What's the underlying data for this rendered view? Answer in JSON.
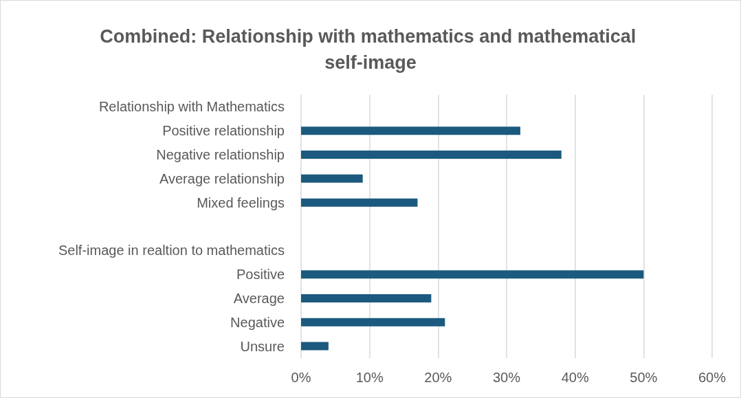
{
  "chart_data": {
    "type": "bar",
    "orientation": "horizontal",
    "title": "Combined: Relationship with mathematics and mathematical self-image",
    "categories": [
      "Relationship with Mathematics",
      "Positive relationship",
      "Negative relationship",
      "Average relationship",
      "Mixed feelings",
      null,
      "Self-image in realtion to mathematics",
      "Positive",
      "Average",
      "Negative",
      "Unsure"
    ],
    "values": [
      null,
      32,
      38,
      9,
      17,
      null,
      null,
      50,
      19,
      21,
      4
    ],
    "color": "#1b5a7e",
    "xlim": [
      0,
      60
    ],
    "xticks": [
      {
        "value": 0,
        "label": "0%"
      },
      {
        "value": 10,
        "label": "10%"
      },
      {
        "value": 20,
        "label": "20%"
      },
      {
        "value": 30,
        "label": "30%"
      },
      {
        "value": 40,
        "label": "40%"
      },
      {
        "value": 50,
        "label": "50%"
      },
      {
        "value": 60,
        "label": "60%"
      }
    ],
    "grid": "x"
  }
}
